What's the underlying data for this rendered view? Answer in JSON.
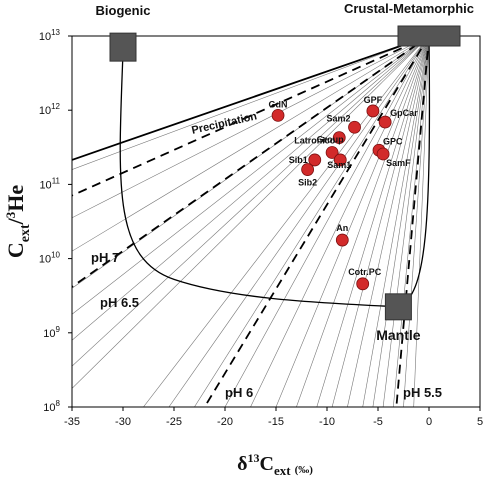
{
  "chart_data": {
    "type": "scatter",
    "xlabel": {
      "prefix": "δ",
      "sup": "13",
      "main": "C",
      "sub": "ext",
      "unit": "(‰)"
    },
    "ylabel": {
      "main": "C",
      "sub": "ext",
      "slash": "/",
      "sup": "3",
      "tail": "He"
    },
    "xlim": [
      -35,
      5
    ],
    "ylim_log10": [
      8,
      13
    ],
    "x_ticks": [
      "-35",
      "-30",
      "-25",
      "-20",
      "-15",
      "-10",
      "-5",
      "0",
      "5"
    ],
    "x_tick_values": [
      -35,
      -30,
      -25,
      -20,
      -15,
      -10,
      -5,
      0,
      5
    ],
    "y_ticks": [
      {
        "base": "10",
        "exp": "8",
        "log": 8
      },
      {
        "base": "10",
        "exp": "9",
        "log": 9
      },
      {
        "base": "10",
        "exp": "10",
        "log": 10
      },
      {
        "base": "10",
        "exp": "11",
        "log": 11
      },
      {
        "base": "10",
        "exp": "12",
        "log": 12
      },
      {
        "base": "10",
        "exp": "13",
        "log": 13
      }
    ],
    "endmembers": [
      {
        "name": "Biogenic",
        "x": -30,
        "log": 12.85
      },
      {
        "name": "Crustal-Metamorphic",
        "x": 0,
        "log": 13.03
      },
      {
        "name": "Mantle",
        "x": -3,
        "log": 9.35
      }
    ],
    "lines": [
      {
        "label": "Precipitation"
      },
      {
        "label": "pH 7"
      },
      {
        "label": "pH 6.5"
      },
      {
        "label": "pH 6"
      },
      {
        "label": "pH 5.5"
      }
    ],
    "points": [
      {
        "label": "GdN",
        "x": -14.8,
        "log": 11.93
      },
      {
        "label": "GPF",
        "x": -5.5,
        "log": 11.99
      },
      {
        "label": "Sam2",
        "x": -7.3,
        "log": 11.77
      },
      {
        "label": "GpCar",
        "x": -4.3,
        "log": 11.84
      },
      {
        "label": "Latronico",
        "x": -8.8,
        "log": 11.63
      },
      {
        "label": "GPC",
        "x": -4.9,
        "log": 11.46
      },
      {
        "label": "Group",
        "x": -9.5,
        "log": 11.43
      },
      {
        "label": "Sib1",
        "x": -11.2,
        "log": 11.33
      },
      {
        "label": "Sam1",
        "x": -8.7,
        "log": 11.33
      },
      {
        "label": "SamF",
        "x": -4.5,
        "log": 11.41
      },
      {
        "label": "Sib2",
        "x": -11.9,
        "log": 11.2
      },
      {
        "label": "An",
        "x": -8.5,
        "log": 10.25
      },
      {
        "label": "Cotr.PC",
        "x": -6.5,
        "log": 9.66
      }
    ]
  }
}
